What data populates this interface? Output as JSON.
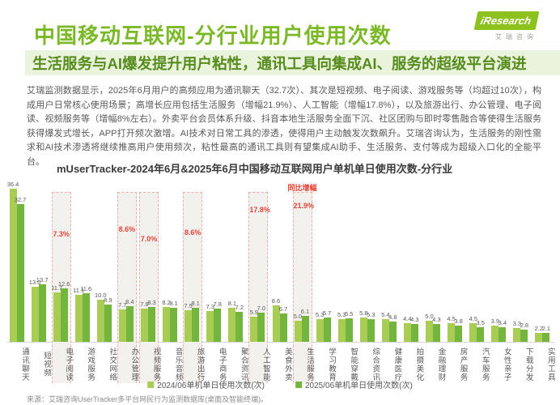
{
  "header": {
    "title": "中国移动互联网-分行业用户使用次数",
    "logo_brand": "iResearch",
    "logo_brand_cn": "艾瑞咨询",
    "subtitle": "生活服务与AI爆发提升用户粘性，通讯工具向集成AI、服务的超级平台演进"
  },
  "body_paragraph": "艾瑞监测数据显示，2025年6月用户的高频应用为通讯聊天（32.7次）、其次是短视频、电子阅读、游戏服务等（均超过10次），构成用户日常核心使用场景；高增长应用包括生活服务（增幅21.9%）、人工智能（增幅17.8%），以及旅游出行、办公管理、电子阅读、视频服务等（增幅8%左右）。外卖平台会员体系升级、抖音本地生活服务全面下沉、社区团购与即时零售融合等使得生活服务获得爆发式增长，APP打开频次激增。AI技术对日常工具的渗透，使得用户主动触发次数飙升。艾瑞咨询认为，生活服务的刚性需求和AI技术渗透将继续推高用户使用频次，粘性最高的通讯工具则有望集成AI助手、生活服务、支付等成为超级入口化的全能平台。",
  "chart_data": {
    "type": "bar",
    "title": "mUserTracker-2024年6月&2025年6月中国移动互联网用户单机单日使用次数-分行业",
    "categories": [
      "通讯聊天",
      "短视频",
      "电子阅读",
      "游戏服务",
      "社交网络",
      "办公管理",
      "视频服务",
      "音乐音频",
      "旅游出行",
      "电子商务",
      "聚合资讯",
      "人工智能",
      "美食外卖",
      "生活服务",
      "学习教育",
      "智能穿戴",
      "综合资讯",
      "健康医疗",
      "拍摄美化",
      "金融理财",
      "房产服务",
      "汽车服务",
      "女性亲子",
      "下载分发",
      "实用工具"
    ],
    "series": [
      {
        "name": "2024/06单机单日使用次数(次)",
        "color": "#a9cc55",
        "values": [
          36.4,
          13.0,
          11.7,
          11.1,
          10.0,
          7.7,
          7.8,
          8.2,
          7.5,
          7.3,
          8.1,
          5.9,
          8.6,
          5.0,
          5.3,
          5.3,
          5.8,
          5.4,
          4.4,
          5.0,
          4.5,
          4.5,
          3.9,
          3.3,
          2.2
        ]
      },
      {
        "name": "2025/06单机单日使用次数(次)",
        "color": "#74b53e",
        "values": [
          32.7,
          13.7,
          12.6,
          11.6,
          8.9,
          8.4,
          8.3,
          8.1,
          8.1,
          7.8,
          7.2,
          7.0,
          6.7,
          6.1,
          5.7,
          5.5,
          5.3,
          4.8,
          4.3,
          4.3,
          3.8,
          3.5,
          3.4,
          2.8,
          2.1
        ]
      }
    ],
    "annotations": {
      "header_label": "同比增幅",
      "items": [
        {
          "category": "电子阅读",
          "index": 2,
          "pct": "7.3%",
          "label_offset": 46,
          "show_header": false
        },
        {
          "category": "办公管理",
          "index": 5,
          "pct": "8.6%",
          "label_offset": 40,
          "show_header": false
        },
        {
          "category": "视频服务",
          "index": 6,
          "pct": "7.0%",
          "label_offset": 52,
          "show_header": false
        },
        {
          "category": "旅游出行",
          "index": 8,
          "pct": "8.6%",
          "label_offset": 44,
          "show_header": false
        },
        {
          "category": "人工智能",
          "index": 11,
          "pct": "17.8%",
          "label_offset": 16,
          "show_header": false
        },
        {
          "category": "生活服务",
          "index": 13,
          "pct": "21.9%",
          "label_offset": 11,
          "show_header": true
        }
      ]
    },
    "ylim": [
      0,
      36.4
    ],
    "grid": false,
    "legend_position": "bottom"
  },
  "footer": {
    "source": "来源：艾瑞咨询UserTracker多平台网民行为监测数据库(桌面及智能终端)。"
  },
  "colors": {
    "title_green": "#7cb929",
    "subtitle_bg": "#eaf3db",
    "subtitle_text": "#568c1d",
    "annotation_red": "#e0453a",
    "series_2024": "#a9cc55",
    "series_2025": "#74b53e"
  }
}
